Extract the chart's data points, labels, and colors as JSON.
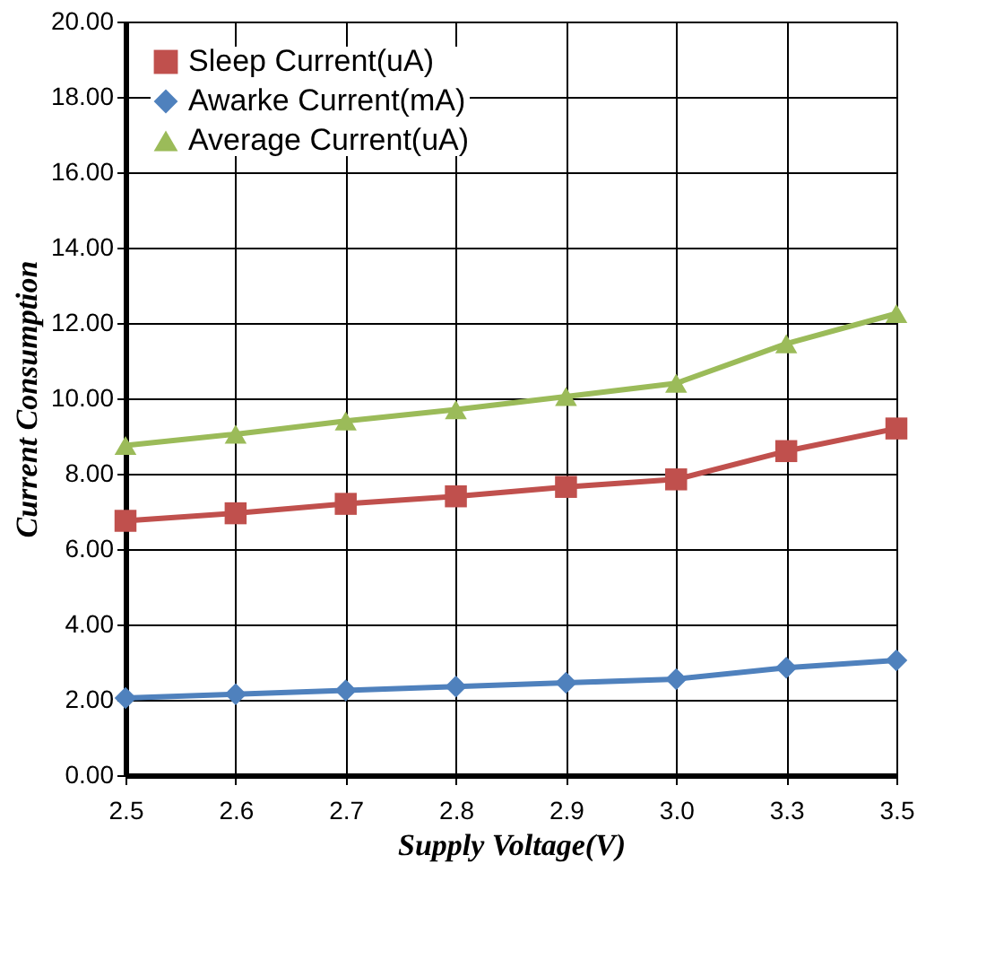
{
  "chart_data": {
    "type": "line",
    "xlabel": "Supply Voltage(V)",
    "ylabel": "Current  Consumption",
    "categories": [
      "2.5",
      "2.6",
      "2.7",
      "2.8",
      "2.9",
      "3.0",
      "3.3",
      "3.5"
    ],
    "series": [
      {
        "name": "Sleep Current(uA)",
        "color": "#c0504d",
        "marker": "square",
        "values": [
          6.75,
          6.95,
          7.2,
          7.4,
          7.65,
          7.85,
          8.6,
          9.2
        ]
      },
      {
        "name": "Awarke Current(mA)",
        "color": "#4f81bd",
        "marker": "diamond",
        "values": [
          2.05,
          2.15,
          2.25,
          2.35,
          2.45,
          2.55,
          2.85,
          3.05
        ]
      },
      {
        "name": "Average Current(uA)",
        "color": "#9bbb59",
        "marker": "triangle",
        "values": [
          8.75,
          9.05,
          9.4,
          9.7,
          10.05,
          10.4,
          11.45,
          12.25
        ]
      }
    ],
    "ylim": [
      0,
      20
    ],
    "yticks": [
      {
        "value": 0,
        "label": "0.00"
      },
      {
        "value": 2,
        "label": "2.00"
      },
      {
        "value": 4,
        "label": "4.00"
      },
      {
        "value": 6,
        "label": "6.00"
      },
      {
        "value": 8,
        "label": "8.00"
      },
      {
        "value": 10,
        "label": "10.00"
      },
      {
        "value": 12,
        "label": "12.00"
      },
      {
        "value": 14,
        "label": "14.00"
      },
      {
        "value": 16,
        "label": "16.00"
      },
      {
        "value": 18,
        "label": "18.00"
      },
      {
        "value": 20,
        "label": "20.00"
      }
    ],
    "grid": true,
    "legend": "top left",
    "line_style": "solid"
  }
}
